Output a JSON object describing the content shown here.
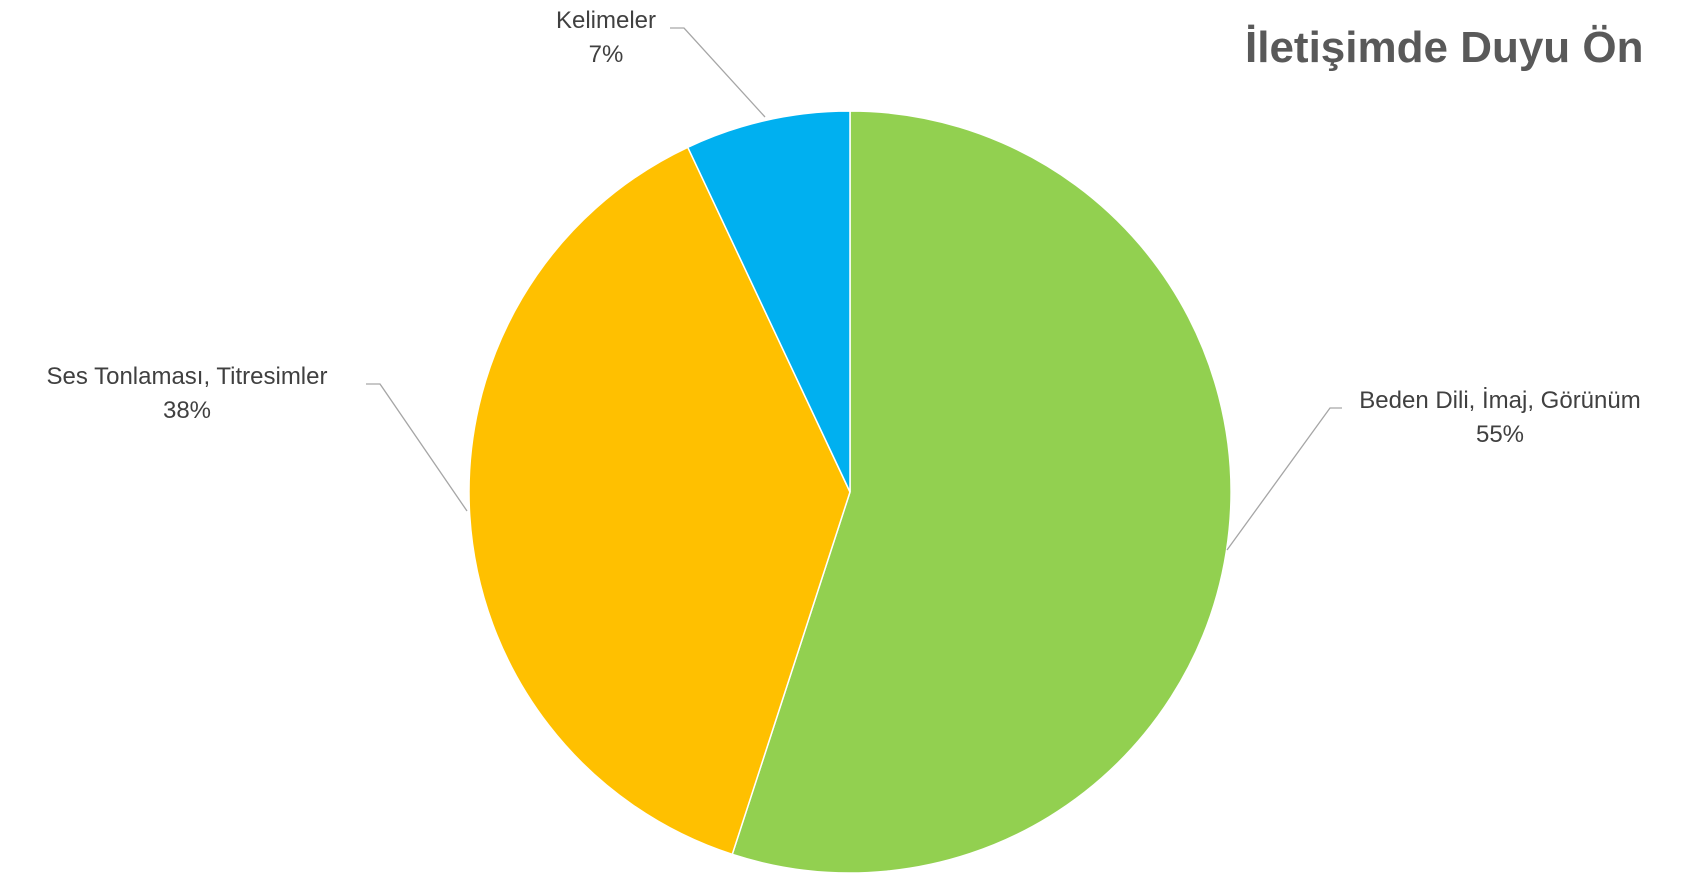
{
  "chart_data": {
    "type": "pie",
    "title": "İletişimde Duyu Ön",
    "categories": [
      "Beden Dili, İmaj, Görünüm",
      "Ses Tonlaması, Titresimler",
      "Kelimeler"
    ],
    "values": [
      55,
      38,
      7
    ],
    "value_labels": [
      "55%",
      "38%",
      "7%"
    ],
    "colors": [
      "#92d050",
      "#ffc000",
      "#00b0f0"
    ],
    "start_angle_deg": 0,
    "direction": "clockwise",
    "legend": "none"
  }
}
